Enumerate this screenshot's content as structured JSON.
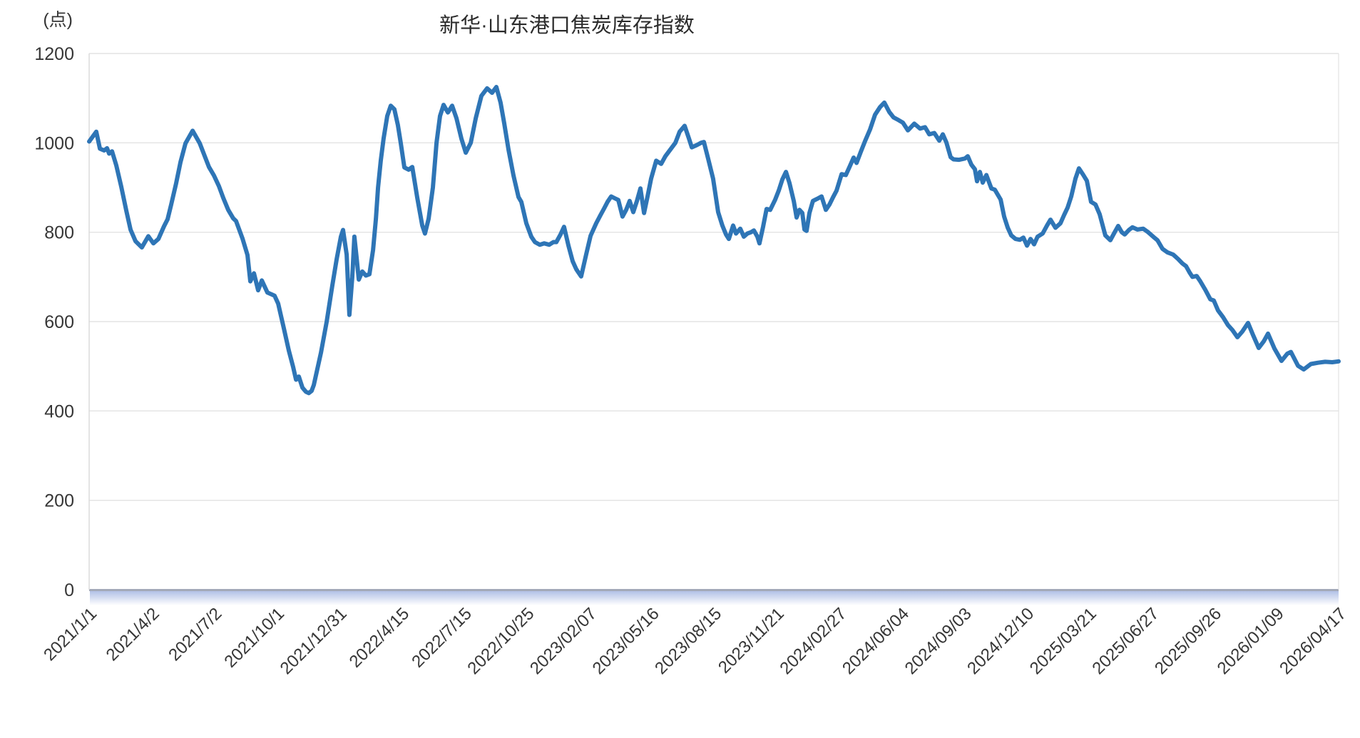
{
  "chart": {
    "title": "新华·山东港口焦炭库存指数",
    "y_axis": {
      "unit_label": "(点)",
      "ticks": [
        0,
        200,
        400,
        600,
        800,
        1000,
        1200
      ]
    },
    "x_axis": {
      "labels": [
        "2021/1/1",
        "2021/4/2",
        "2021/7/2",
        "2021/10/1",
        "2021/12/31",
        "2022/4/15",
        "2022/7/15",
        "2022/10/25",
        "2023/02/07",
        "2023/05/16",
        "2023/08/15",
        "2023/11/21",
        "2024/02/27",
        "2024/06/04",
        "2024/09/03",
        "2024/12/10",
        "2025/03/21",
        "2025/06/27",
        "2025/09/26",
        "2026/01/09",
        "2026/04/17"
      ]
    },
    "colors": {
      "line": "#2E75B6",
      "grid": "#e3e3e3",
      "axis_border": "#d9d9d9",
      "tick_text": "#363636",
      "title_text": "#2b2b2b",
      "baseline_glow": "#a4b6e2"
    }
  },
  "chart_data": {
    "type": "line",
    "title": "新华·山东港口焦炭库存指数",
    "ylabel": "(点)",
    "ylim": [
      0,
      1200
    ],
    "grid": true,
    "legend": false,
    "x_tick_labels": [
      "2021/1/1",
      "2021/4/2",
      "2021/7/2",
      "2021/10/1",
      "2021/12/31",
      "2022/4/15",
      "2022/7/15",
      "2022/10/25",
      "2023/02/07",
      "2023/05/16",
      "2023/08/15",
      "2023/11/21",
      "2024/02/27",
      "2024/06/04",
      "2024/09/03",
      "2024/12/10",
      "2025/03/21",
      "2025/06/27",
      "2025/09/26",
      "2026/01/09",
      "2026/04/17"
    ],
    "series_name": "新华·山东港口焦炭库存指数",
    "points_format": "[relative_time_0_to_1, index_value_points]",
    "points": [
      [
        0,
        1003
      ],
      [
        0.0057,
        1025
      ],
      [
        0.0086,
        987
      ],
      [
        0.012,
        983
      ],
      [
        0.0143,
        988
      ],
      [
        0.016,
        976
      ],
      [
        0.0183,
        981
      ],
      [
        0.0217,
        950
      ],
      [
        0.0257,
        902
      ],
      [
        0.0297,
        849
      ],
      [
        0.0331,
        806
      ],
      [
        0.0371,
        780
      ],
      [
        0.0422,
        766
      ],
      [
        0.0474,
        791
      ],
      [
        0.0514,
        775
      ],
      [
        0.0554,
        785
      ],
      [
        0.0599,
        813
      ],
      [
        0.0628,
        829
      ],
      [
        0.0656,
        861
      ],
      [
        0.0696,
        909
      ],
      [
        0.0731,
        957
      ],
      [
        0.0771,
        999
      ],
      [
        0.0828,
        1027
      ],
      [
        0.0885,
        999
      ],
      [
        0.0925,
        970
      ],
      [
        0.0959,
        946
      ],
      [
        0.0999,
        927
      ],
      [
        0.1039,
        903
      ],
      [
        0.1073,
        877
      ],
      [
        0.1113,
        850
      ],
      [
        0.1153,
        831
      ],
      [
        0.1176,
        825
      ],
      [
        0.1227,
        786
      ],
      [
        0.1267,
        749
      ],
      [
        0.129,
        690
      ],
      [
        0.1319,
        708
      ],
      [
        0.1353,
        670
      ],
      [
        0.1382,
        692
      ],
      [
        0.1427,
        665
      ],
      [
        0.1484,
        658
      ],
      [
        0.1513,
        640
      ],
      [
        0.1558,
        585
      ],
      [
        0.1598,
        535
      ],
      [
        0.1633,
        498
      ],
      [
        0.1656,
        470
      ],
      [
        0.1678,
        477
      ],
      [
        0.1707,
        452
      ],
      [
        0.1735,
        443
      ],
      [
        0.1758,
        440
      ],
      [
        0.1781,
        445
      ],
      [
        0.1798,
        458
      ],
      [
        0.1855,
        530
      ],
      [
        0.1901,
        600
      ],
      [
        0.1946,
        680
      ],
      [
        0.1981,
        740
      ],
      [
        0.2015,
        790
      ],
      [
        0.2032,
        805
      ],
      [
        0.2061,
        750
      ],
      [
        0.2083,
        615
      ],
      [
        0.2106,
        700
      ],
      [
        0.2123,
        790
      ],
      [
        0.214,
        745
      ],
      [
        0.2158,
        694
      ],
      [
        0.2186,
        712
      ],
      [
        0.2215,
        703
      ],
      [
        0.2243,
        706
      ],
      [
        0.2272,
        760
      ],
      [
        0.2295,
        830
      ],
      [
        0.2312,
        900
      ],
      [
        0.2334,
        960
      ],
      [
        0.2357,
        1010
      ],
      [
        0.2386,
        1060
      ],
      [
        0.2414,
        1083
      ],
      [
        0.2443,
        1075
      ],
      [
        0.2471,
        1040
      ],
      [
        0.2494,
        1000
      ],
      [
        0.2523,
        945
      ],
      [
        0.2557,
        940
      ],
      [
        0.2586,
        946
      ],
      [
        0.2626,
        877
      ],
      [
        0.2666,
        815
      ],
      [
        0.2688,
        797
      ],
      [
        0.2717,
        830
      ],
      [
        0.2751,
        900
      ],
      [
        0.278,
        1000
      ],
      [
        0.2808,
        1060
      ],
      [
        0.2837,
        1085
      ],
      [
        0.2871,
        1068
      ],
      [
        0.2905,
        1083
      ],
      [
        0.294,
        1055
      ],
      [
        0.2979,
        1010
      ],
      [
        0.3014,
        978
      ],
      [
        0.3054,
        1000
      ],
      [
        0.3094,
        1055
      ],
      [
        0.3139,
        1105
      ],
      [
        0.3185,
        1122
      ],
      [
        0.3225,
        1112
      ],
      [
        0.3259,
        1125
      ],
      [
        0.3293,
        1090
      ],
      [
        0.3322,
        1044
      ],
      [
        0.3356,
        985
      ],
      [
        0.3396,
        927
      ],
      [
        0.3436,
        879
      ],
      [
        0.3459,
        868
      ],
      [
        0.3499,
        820
      ],
      [
        0.3539,
        790
      ],
      [
        0.3568,
        778
      ],
      [
        0.3607,
        772
      ],
      [
        0.3642,
        775
      ],
      [
        0.3682,
        772
      ],
      [
        0.3716,
        778
      ],
      [
        0.3739,
        778
      ],
      [
        0.3773,
        795
      ],
      [
        0.3801,
        812
      ],
      [
        0.3836,
        770
      ],
      [
        0.387,
        735
      ],
      [
        0.3899,
        717
      ],
      [
        0.3938,
        701
      ],
      [
        0.3978,
        750
      ],
      [
        0.4013,
        792
      ],
      [
        0.4058,
        820
      ],
      [
        0.4092,
        838
      ],
      [
        0.4121,
        853
      ],
      [
        0.4149,
        868
      ],
      [
        0.4178,
        880
      ],
      [
        0.4206,
        876
      ],
      [
        0.4235,
        872
      ],
      [
        0.4269,
        835
      ],
      [
        0.4298,
        850
      ],
      [
        0.4326,
        870
      ],
      [
        0.4355,
        845
      ],
      [
        0.4384,
        870
      ],
      [
        0.4412,
        898
      ],
      [
        0.4441,
        843
      ],
      [
        0.4469,
        880
      ],
      [
        0.4498,
        920
      ],
      [
        0.4538,
        960
      ],
      [
        0.4578,
        953
      ],
      [
        0.4612,
        970
      ],
      [
        0.4652,
        985
      ],
      [
        0.4692,
        1000
      ],
      [
        0.4726,
        1025
      ],
      [
        0.4766,
        1038
      ],
      [
        0.48,
        1010
      ],
      [
        0.4823,
        990
      ],
      [
        0.4863,
        995
      ],
      [
        0.4897,
        1000
      ],
      [
        0.492,
        1002
      ],
      [
        0.4954,
        965
      ],
      [
        0.4994,
        920
      ],
      [
        0.5034,
        845
      ],
      [
        0.5068,
        815
      ],
      [
        0.5097,
        795
      ],
      [
        0.512,
        785
      ],
      [
        0.5154,
        815
      ],
      [
        0.5177,
        797
      ],
      [
        0.5211,
        808
      ],
      [
        0.524,
        790
      ],
      [
        0.5268,
        797
      ],
      [
        0.5297,
        800
      ],
      [
        0.532,
        804
      ],
      [
        0.5348,
        790
      ],
      [
        0.5365,
        775
      ],
      [
        0.5394,
        812
      ],
      [
        0.5422,
        852
      ],
      [
        0.5451,
        850
      ],
      [
        0.5491,
        873
      ],
      [
        0.5519,
        893
      ],
      [
        0.5548,
        918
      ],
      [
        0.5577,
        935
      ],
      [
        0.5605,
        910
      ],
      [
        0.5622,
        890
      ],
      [
        0.5639,
        870
      ],
      [
        0.5662,
        833
      ],
      [
        0.5685,
        850
      ],
      [
        0.5708,
        843
      ],
      [
        0.5725,
        806
      ],
      [
        0.5742,
        803
      ],
      [
        0.5765,
        843
      ],
      [
        0.5793,
        870
      ],
      [
        0.5828,
        875
      ],
      [
        0.5862,
        880
      ],
      [
        0.5896,
        850
      ],
      [
        0.5925,
        862
      ],
      [
        0.5953,
        878
      ],
      [
        0.5982,
        893
      ],
      [
        0.6022,
        930
      ],
      [
        0.6056,
        928
      ],
      [
        0.6084,
        945
      ],
      [
        0.6119,
        967
      ],
      [
        0.6142,
        955
      ],
      [
        0.6176,
        980
      ],
      [
        0.621,
        1004
      ],
      [
        0.625,
        1030
      ],
      [
        0.629,
        1063
      ],
      [
        0.633,
        1080
      ],
      [
        0.6364,
        1090
      ],
      [
        0.6404,
        1069
      ],
      [
        0.6438,
        1057
      ],
      [
        0.6478,
        1051
      ],
      [
        0.6513,
        1045
      ],
      [
        0.6553,
        1028
      ],
      [
        0.6604,
        1043
      ],
      [
        0.665,
        1032
      ],
      [
        0.669,
        1035
      ],
      [
        0.6724,
        1019
      ],
      [
        0.6764,
        1022
      ],
      [
        0.6804,
        1005
      ],
      [
        0.6832,
        1019
      ],
      [
        0.6861,
        1001
      ],
      [
        0.6895,
        968
      ],
      [
        0.6918,
        963
      ],
      [
        0.6963,
        962
      ],
      [
        0.7009,
        965
      ],
      [
        0.7032,
        970
      ],
      [
        0.7061,
        951
      ],
      [
        0.7089,
        941
      ],
      [
        0.7106,
        914
      ],
      [
        0.7129,
        935
      ],
      [
        0.7152,
        911
      ],
      [
        0.7181,
        928
      ],
      [
        0.7221,
        898
      ],
      [
        0.7249,
        895
      ],
      [
        0.7295,
        873
      ],
      [
        0.7323,
        835
      ],
      [
        0.7352,
        810
      ],
      [
        0.738,
        793
      ],
      [
        0.7414,
        785
      ],
      [
        0.7449,
        783
      ],
      [
        0.7477,
        788
      ],
      [
        0.7506,
        770
      ],
      [
        0.7534,
        785
      ],
      [
        0.7563,
        773
      ],
      [
        0.7591,
        790
      ],
      [
        0.7631,
        797
      ],
      [
        0.7666,
        815
      ],
      [
        0.7694,
        828
      ],
      [
        0.7734,
        810
      ],
      [
        0.7774,
        820
      ],
      [
        0.7802,
        838
      ],
      [
        0.7831,
        855
      ],
      [
        0.786,
        880
      ],
      [
        0.7894,
        920
      ],
      [
        0.7922,
        943
      ],
      [
        0.7957,
        928
      ],
      [
        0.7985,
        915
      ],
      [
        0.8019,
        868
      ],
      [
        0.8054,
        862
      ],
      [
        0.8088,
        840
      ],
      [
        0.8133,
        793
      ],
      [
        0.8173,
        782
      ],
      [
        0.8208,
        800
      ],
      [
        0.8236,
        814
      ],
      [
        0.8265,
        800
      ],
      [
        0.8288,
        795
      ],
      [
        0.8322,
        805
      ],
      [
        0.835,
        811
      ],
      [
        0.839,
        806
      ],
      [
        0.8436,
        808
      ],
      [
        0.8476,
        800
      ],
      [
        0.8516,
        790
      ],
      [
        0.855,
        782
      ],
      [
        0.859,
        763
      ],
      [
        0.863,
        755
      ],
      [
        0.8676,
        750
      ],
      [
        0.8716,
        740
      ],
      [
        0.875,
        730
      ],
      [
        0.8779,
        724
      ],
      [
        0.8807,
        710
      ],
      [
        0.883,
        700
      ],
      [
        0.8864,
        702
      ],
      [
        0.8893,
        690
      ],
      [
        0.8933,
        671
      ],
      [
        0.8973,
        650
      ],
      [
        0.9001,
        647
      ],
      [
        0.9035,
        625
      ],
      [
        0.9075,
        610
      ],
      [
        0.9115,
        592
      ],
      [
        0.915,
        581
      ],
      [
        0.919,
        565
      ],
      [
        0.923,
        578
      ],
      [
        0.9275,
        597
      ],
      [
        0.9315,
        570
      ],
      [
        0.9361,
        541
      ],
      [
        0.9401,
        556
      ],
      [
        0.9435,
        573
      ],
      [
        0.9486,
        540
      ],
      [
        0.9543,
        512
      ],
      [
        0.9589,
        528
      ],
      [
        0.9618,
        532
      ],
      [
        0.9675,
        501
      ],
      [
        0.9721,
        493
      ],
      [
        0.9778,
        505
      ],
      [
        0.9835,
        508
      ],
      [
        0.9892,
        510
      ],
      [
        0.9949,
        509
      ],
      [
        1,
        511
      ]
    ]
  }
}
